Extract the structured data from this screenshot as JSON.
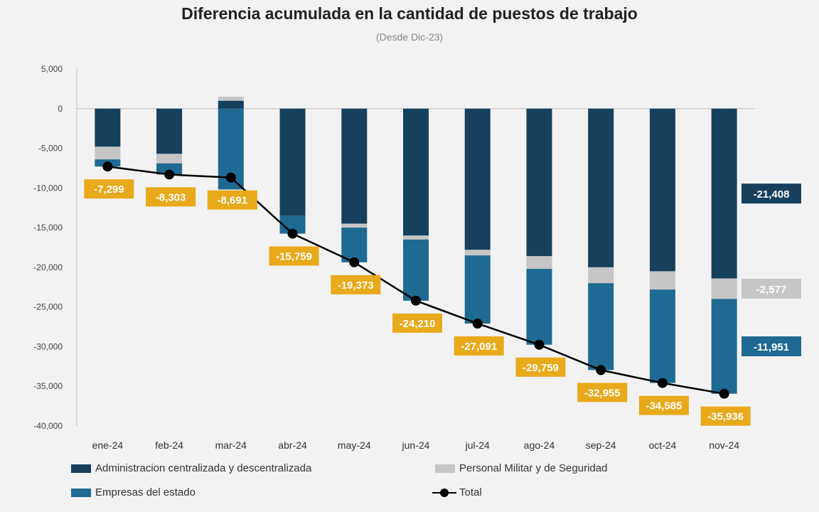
{
  "colors": {
    "admin": "#17405e",
    "militar": "#c6c6c6",
    "empresas": "#1e6a92",
    "total": "#000000",
    "label_bg": "#e8a91b",
    "label_text": "#ffffff",
    "gridline": "#cfcfcf",
    "background": "#f2f2f2"
  },
  "chart_data": {
    "type": "bar",
    "stacked": true,
    "title": "Diferencia acumulada en la cantidad de puestos de trabajo",
    "subtitle": "(Desde Dic-23)",
    "categories": [
      "ene-24",
      "feb-24",
      "mar-24",
      "abr-24",
      "may-24",
      "jun-24",
      "jul-24",
      "ago-24",
      "sep-24",
      "oct-24",
      "nov-24"
    ],
    "series": [
      {
        "name": "Administracion centralizada y descentralizada",
        "values": [
          -4800,
          -5700,
          1000,
          -13500,
          -14500,
          -16000,
          -17800,
          -18600,
          -20000,
          -20500,
          -21408
        ],
        "color": "#17405e"
      },
      {
        "name": "Personal Militar y de Seguridad",
        "values": [
          -1600,
          -1200,
          500,
          0,
          -500,
          -500,
          -700,
          -1600,
          -2000,
          -2300,
          -2577
        ],
        "color": "#c6c6c6"
      },
      {
        "name": "Empresas del estado",
        "values": [
          -900,
          -1400,
          -10191,
          -2259,
          -4373,
          -7710,
          -8591,
          -9559,
          -10955,
          -11781,
          -11951
        ],
        "color": "#1e6a92"
      }
    ],
    "total": {
      "name": "Total",
      "values": [
        -7299,
        -8303,
        -8691,
        -15759,
        -19373,
        -24210,
        -27091,
        -29759,
        -32955,
        -34585,
        -35936
      ],
      "labels": [
        "-7,299",
        "-8,303",
        "-8,691",
        "-15,759",
        "-19,373",
        "-24,210",
        "-27,091",
        "-29,759",
        "-32,955",
        "-34,585",
        "-35,936"
      ]
    },
    "end_labels": [
      {
        "text": "-21,408",
        "series": 0
      },
      {
        "text": "-2,577",
        "series": 1
      },
      {
        "text": "-11,951",
        "series": 2
      }
    ],
    "y_ticks": [
      5000,
      0,
      -5000,
      -10000,
      -15000,
      -20000,
      -25000,
      -30000,
      -35000,
      -40000
    ],
    "y_tick_labels": [
      "5,000",
      "0",
      "-5,000",
      "-10,000",
      "-15,000",
      "-20,000",
      "-25,000",
      "-30,000",
      "-35,000",
      "-40,000"
    ],
    "ylim": [
      -40000,
      5000
    ],
    "grid": false,
    "legend": [
      {
        "label": "Administracion centralizada y descentralizada",
        "kind": "bar",
        "series": 0
      },
      {
        "label": "Personal Militar y de Seguridad",
        "kind": "bar",
        "series": 1
      },
      {
        "label": "Empresas del estado",
        "kind": "bar",
        "series": 2
      },
      {
        "label": "Total",
        "kind": "line"
      }
    ],
    "legend_position": "bottom"
  }
}
